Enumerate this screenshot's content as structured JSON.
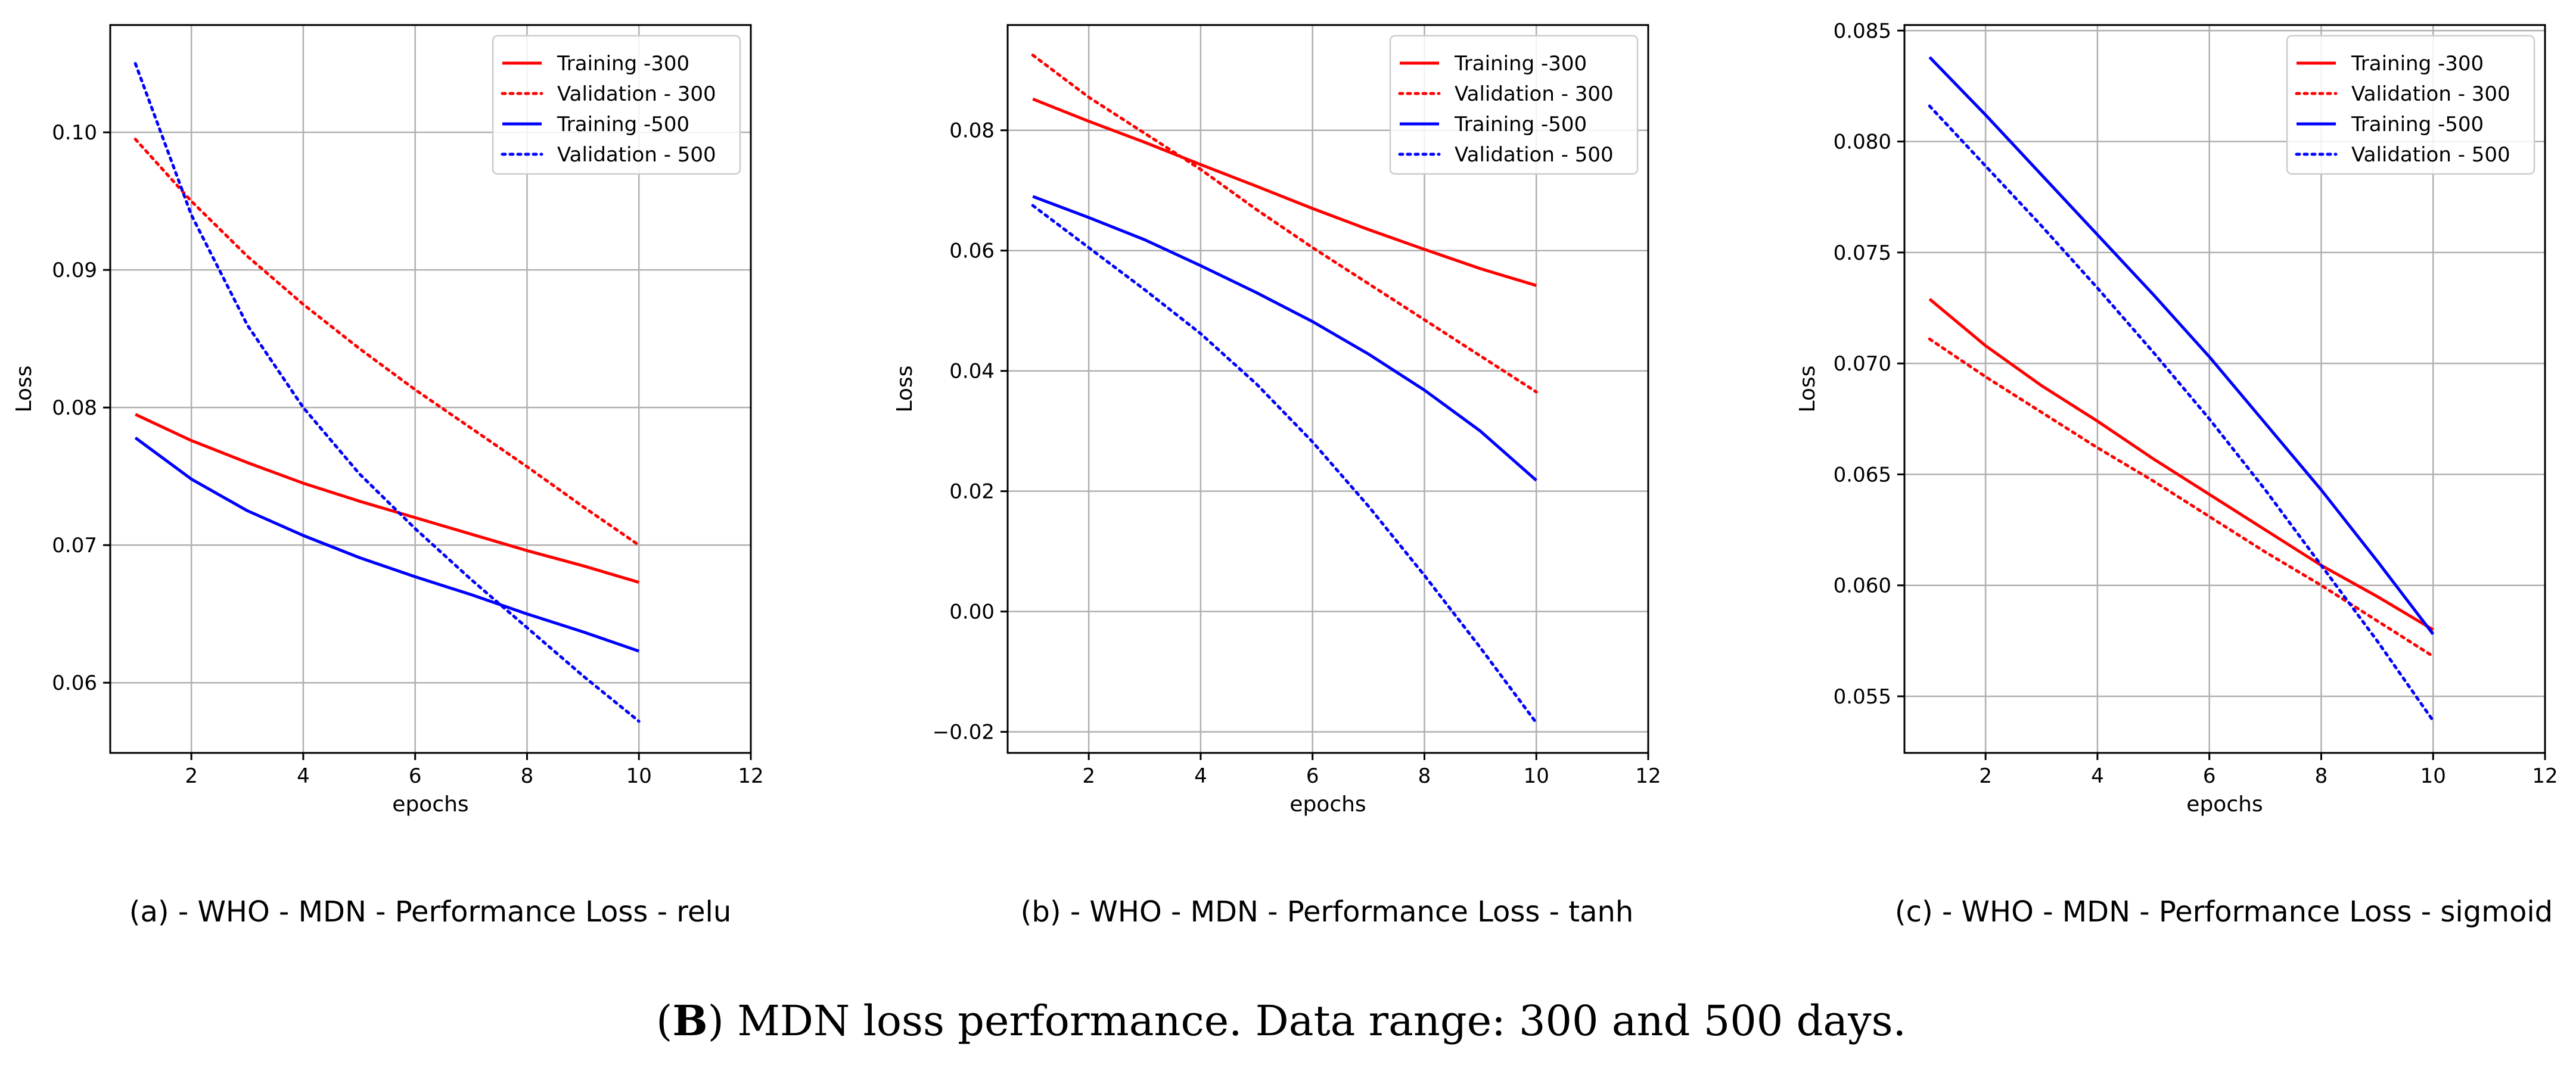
{
  "figure_caption": {
    "open": "(",
    "letter": "B",
    "rest": ") MDN loss performance. Data range: 300 and 500 days."
  },
  "colors": {
    "training_300": "#ff0000",
    "validation_300": "#ff0000",
    "training_500": "#0000ff",
    "validation_500": "#0000ff",
    "grid": "#b0b0b0"
  },
  "chart_data": [
    {
      "type": "line",
      "caption": "(a)  - WHO - MDN - Performance Loss - relu",
      "xlabel": "epochs",
      "ylabel": "Loss",
      "xlim": [
        0.55,
        12
      ],
      "ylim": [
        0.0549,
        0.1078
      ],
      "xticks": [
        2,
        4,
        6,
        8,
        10,
        12
      ],
      "yticks": [
        0.06,
        0.07,
        0.08,
        0.09,
        0.1
      ],
      "ytick_labels": [
        "0.06",
        "0.07",
        "0.08",
        "0.09",
        "0.10"
      ],
      "grid": true,
      "legend_position": "top-right",
      "x": [
        1,
        2,
        3,
        4,
        5,
        6,
        7,
        8,
        9,
        10
      ],
      "series": [
        {
          "name": "Training -300",
          "style": "solid",
          "color": "#ff0000",
          "values": [
            0.0795,
            0.0776,
            0.076,
            0.0745,
            0.0732,
            0.072,
            0.0708,
            0.0696,
            0.0685,
            0.0673
          ]
        },
        {
          "name": "Validation - 300",
          "style": "dotted",
          "color": "#ff0000",
          "values": [
            0.0995,
            0.095,
            0.091,
            0.0875,
            0.0843,
            0.0813,
            0.0785,
            0.0757,
            0.0728,
            0.07
          ]
        },
        {
          "name": "Training -500",
          "style": "solid",
          "color": "#0000ff",
          "values": [
            0.0778,
            0.0748,
            0.0725,
            0.0707,
            0.0691,
            0.0677,
            0.0664,
            0.065,
            0.0637,
            0.0623
          ]
        },
        {
          "name": "Validation - 500",
          "style": "dotted",
          "color": "#0000ff",
          "values": [
            0.105,
            0.094,
            0.086,
            0.08,
            0.0752,
            0.0712,
            0.0675,
            0.064,
            0.0605,
            0.0572
          ]
        }
      ]
    },
    {
      "type": "line",
      "caption": "(b)  - WHO - MDN - Performance Loss - tanh",
      "xlabel": "epochs",
      "ylabel": "Loss",
      "xlim": [
        0.55,
        12
      ],
      "ylim": [
        -0.0235,
        0.0975
      ],
      "xticks": [
        2,
        4,
        6,
        8,
        10,
        12
      ],
      "yticks": [
        -0.02,
        0.0,
        0.02,
        0.04,
        0.06,
        0.08
      ],
      "ytick_labels": [
        "−0.02",
        "0.00",
        "0.02",
        "0.04",
        "0.06",
        "0.08"
      ],
      "grid": true,
      "legend_position": "top-right",
      "x": [
        1,
        2,
        3,
        4,
        5,
        6,
        7,
        8,
        9,
        10
      ],
      "series": [
        {
          "name": "Training -300",
          "style": "solid",
          "color": "#ff0000",
          "values": [
            0.0852,
            0.0815,
            0.078,
            0.0743,
            0.0707,
            0.067,
            0.0635,
            0.0602,
            0.057,
            0.0542
          ]
        },
        {
          "name": "Validation - 300",
          "style": "dotted",
          "color": "#ff0000",
          "values": [
            0.0925,
            0.0855,
            0.0795,
            0.0735,
            0.0668,
            0.0605,
            0.0545,
            0.0485,
            0.0425,
            0.0365
          ]
        },
        {
          "name": "Training -500",
          "style": "solid",
          "color": "#0000ff",
          "values": [
            0.069,
            0.0655,
            0.0618,
            0.0575,
            0.053,
            0.0482,
            0.0428,
            0.0368,
            0.03,
            0.0218
          ]
        },
        {
          "name": "Validation - 500",
          "style": "dotted",
          "color": "#0000ff",
          "values": [
            0.0675,
            0.0605,
            0.0535,
            0.0462,
            0.0378,
            0.0282,
            0.0175,
            0.006,
            -0.006,
            -0.0185
          ]
        }
      ]
    },
    {
      "type": "line",
      "caption": "(c)  - WHO - MDN - Performance Loss - sigmoid",
      "xlabel": "epochs",
      "ylabel": "Loss",
      "xlim": [
        0.55,
        12
      ],
      "ylim": [
        0.05245,
        0.08525
      ],
      "xticks": [
        2,
        4,
        6,
        8,
        10,
        12
      ],
      "yticks": [
        0.055,
        0.06,
        0.065,
        0.07,
        0.075,
        0.08,
        0.085
      ],
      "ytick_labels": [
        "0.055",
        "0.060",
        "0.065",
        "0.070",
        "0.075",
        "0.080",
        "0.085"
      ],
      "grid": true,
      "legend_position": "top-right",
      "x": [
        1,
        2,
        3,
        4,
        5,
        6,
        7,
        8,
        9,
        10
      ],
      "series": [
        {
          "name": "Training -300",
          "style": "solid",
          "color": "#ff0000",
          "values": [
            0.0729,
            0.0708,
            0.069,
            0.0674,
            0.0657,
            0.0641,
            0.0625,
            0.0609,
            0.0595,
            0.058
          ]
        },
        {
          "name": "Validation - 300",
          "style": "dotted",
          "color": "#ff0000",
          "values": [
            0.0711,
            0.0694,
            0.0678,
            0.0662,
            0.0647,
            0.0631,
            0.0615,
            0.06,
            0.0584,
            0.0568
          ]
        },
        {
          "name": "Training -500",
          "style": "solid",
          "color": "#0000ff",
          "values": [
            0.0838,
            0.0812,
            0.0785,
            0.0758,
            0.0731,
            0.0703,
            0.0673,
            0.0643,
            0.0611,
            0.0578
          ]
        },
        {
          "name": "Validation - 500",
          "style": "dotted",
          "color": "#0000ff",
          "values": [
            0.0816,
            0.0789,
            0.0762,
            0.0734,
            0.0705,
            0.0675,
            0.0643,
            0.0609,
            0.0575,
            0.0539
          ]
        }
      ]
    }
  ]
}
